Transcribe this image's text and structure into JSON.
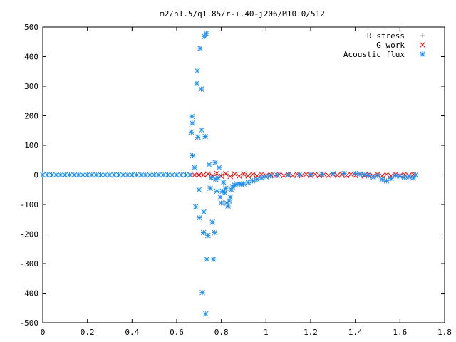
{
  "chart_data": {
    "type": "scatter",
    "title": "m2/n1.5/q1.85/r-+.40-j206/M10.0/512",
    "xlabel": "",
    "ylabel": "",
    "xlim": [
      0,
      1.8
    ],
    "ylim": [
      -500,
      500
    ],
    "x_ticks": [
      0,
      0.2,
      0.4,
      0.6,
      0.8,
      1,
      1.2,
      1.4,
      1.6,
      1.8
    ],
    "x_tick_labels": [
      "0",
      "0.2",
      "0.4",
      "0.6",
      "0.8",
      "1",
      "1.2",
      "1.4",
      "1.6",
      "1.8"
    ],
    "y_ticks": [
      -500,
      -400,
      -300,
      -200,
      -100,
      0,
      100,
      200,
      300,
      400,
      500
    ],
    "y_tick_labels": [
      "-500",
      "-400",
      "-300",
      "-200",
      "-100",
      "0",
      "100",
      "200",
      "300",
      "400",
      "500"
    ],
    "grid": false,
    "legend_position": "top-right",
    "series": [
      {
        "name": "R stress",
        "marker": "plus",
        "color": "#a0a0a0",
        "points": [
          [
            0.7,
            2
          ],
          [
            0.75,
            1
          ],
          [
            0.8,
            -1
          ],
          [
            0.85,
            0
          ],
          [
            0.9,
            1
          ],
          [
            0.95,
            0
          ],
          [
            1.0,
            1
          ],
          [
            1.1,
            2
          ],
          [
            1.2,
            3
          ],
          [
            1.3,
            4
          ],
          [
            1.4,
            3
          ],
          [
            1.5,
            2
          ],
          [
            1.6,
            1
          ],
          [
            1.67,
            0
          ]
        ]
      },
      {
        "name": "G work",
        "marker": "cross",
        "color": "#ff0000",
        "points": [
          [
            0.66,
            0
          ],
          [
            0.68,
            0
          ],
          [
            0.7,
            0
          ],
          [
            0.72,
            0
          ],
          [
            0.74,
            3
          ],
          [
            0.76,
            -3
          ],
          [
            0.78,
            5
          ],
          [
            0.8,
            -4
          ],
          [
            0.82,
            4
          ],
          [
            0.84,
            -5
          ],
          [
            0.86,
            3
          ],
          [
            0.88,
            -4
          ],
          [
            0.9,
            3
          ],
          [
            0.92,
            -3
          ],
          [
            0.94,
            2
          ],
          [
            0.96,
            -3
          ],
          [
            0.98,
            2
          ],
          [
            1.0,
            -2
          ],
          [
            1.02,
            2
          ],
          [
            1.04,
            -2
          ],
          [
            1.06,
            2
          ],
          [
            1.08,
            -2
          ],
          [
            1.1,
            2
          ],
          [
            1.12,
            -2
          ],
          [
            1.14,
            2
          ],
          [
            1.16,
            -2
          ],
          [
            1.18,
            2
          ],
          [
            1.2,
            -2
          ],
          [
            1.22,
            2
          ],
          [
            1.24,
            -2
          ],
          [
            1.26,
            2
          ],
          [
            1.28,
            -2
          ],
          [
            1.3,
            2
          ],
          [
            1.32,
            -1
          ],
          [
            1.34,
            2
          ],
          [
            1.36,
            -2
          ],
          [
            1.38,
            2
          ],
          [
            1.4,
            -2
          ],
          [
            1.42,
            2
          ],
          [
            1.44,
            -3
          ],
          [
            1.46,
            2
          ],
          [
            1.48,
            -3
          ],
          [
            1.5,
            2
          ],
          [
            1.52,
            -3
          ],
          [
            1.54,
            2
          ],
          [
            1.56,
            -3
          ],
          [
            1.58,
            2
          ],
          [
            1.6,
            -2
          ],
          [
            1.62,
            2
          ],
          [
            1.64,
            -2
          ],
          [
            1.66,
            2
          ]
        ]
      },
      {
        "name": "Acoustic flux",
        "marker": "star",
        "color": "#1f8ff0",
        "points": [
          [
            0.0,
            0
          ],
          [
            0.02,
            0
          ],
          [
            0.04,
            0
          ],
          [
            0.06,
            0
          ],
          [
            0.08,
            0
          ],
          [
            0.1,
            0
          ],
          [
            0.12,
            0
          ],
          [
            0.14,
            0
          ],
          [
            0.16,
            0
          ],
          [
            0.18,
            0
          ],
          [
            0.2,
            0
          ],
          [
            0.22,
            0
          ],
          [
            0.24,
            0
          ],
          [
            0.26,
            0
          ],
          [
            0.28,
            0
          ],
          [
            0.3,
            0
          ],
          [
            0.32,
            0
          ],
          [
            0.34,
            0
          ],
          [
            0.36,
            0
          ],
          [
            0.38,
            0
          ],
          [
            0.4,
            0
          ],
          [
            0.42,
            0
          ],
          [
            0.44,
            0
          ],
          [
            0.46,
            0
          ],
          [
            0.48,
            0
          ],
          [
            0.5,
            0
          ],
          [
            0.52,
            0
          ],
          [
            0.54,
            0
          ],
          [
            0.56,
            0
          ],
          [
            0.58,
            0
          ],
          [
            0.6,
            0
          ],
          [
            0.62,
            0
          ],
          [
            0.64,
            0
          ],
          [
            0.66,
            0
          ],
          [
            0.665,
            145
          ],
          [
            0.668,
            198
          ],
          [
            0.67,
            175
          ],
          [
            0.672,
            65
          ],
          [
            0.68,
            25
          ],
          [
            0.685,
            -108
          ],
          [
            0.69,
            310
          ],
          [
            0.692,
            352
          ],
          [
            0.695,
            128
          ],
          [
            0.7,
            -50
          ],
          [
            0.702,
            -145
          ],
          [
            0.705,
            428
          ],
          [
            0.71,
            290
          ],
          [
            0.712,
            152
          ],
          [
            0.715,
            -398
          ],
          [
            0.72,
            -195
          ],
          [
            0.722,
            -125
          ],
          [
            0.725,
            468
          ],
          [
            0.728,
            130
          ],
          [
            0.73,
            -470
          ],
          [
            0.732,
            478
          ],
          [
            0.735,
            -285
          ],
          [
            0.74,
            -205
          ],
          [
            0.745,
            35
          ],
          [
            0.75,
            -45
          ],
          [
            0.755,
            -10
          ],
          [
            0.76,
            -160
          ],
          [
            0.765,
            -285
          ],
          [
            0.77,
            -195
          ],
          [
            0.772,
            42
          ],
          [
            0.775,
            -15
          ],
          [
            0.78,
            -55
          ],
          [
            0.785,
            -10
          ],
          [
            0.79,
            25
          ],
          [
            0.795,
            -75
          ],
          [
            0.8,
            -95
          ],
          [
            0.805,
            -55
          ],
          [
            0.81,
            -25
          ],
          [
            0.815,
            -60
          ],
          [
            0.82,
            -45
          ],
          [
            0.825,
            -95
          ],
          [
            0.83,
            -105
          ],
          [
            0.835,
            -88
          ],
          [
            0.84,
            -75
          ],
          [
            0.845,
            -50
          ],
          [
            0.85,
            -40
          ],
          [
            0.86,
            -35
          ],
          [
            0.87,
            -30
          ],
          [
            0.88,
            -30
          ],
          [
            0.89,
            -32
          ],
          [
            0.9,
            -30
          ],
          [
            0.92,
            -25
          ],
          [
            0.94,
            -20
          ],
          [
            0.96,
            -15
          ],
          [
            0.98,
            -10
          ],
          [
            1.0,
            -6
          ],
          [
            1.02,
            -3
          ],
          [
            1.05,
            -1
          ],
          [
            1.1,
            0
          ],
          [
            1.15,
            1
          ],
          [
            1.2,
            2
          ],
          [
            1.25,
            3
          ],
          [
            1.3,
            4
          ],
          [
            1.35,
            5
          ],
          [
            1.4,
            5
          ],
          [
            1.42,
            3
          ],
          [
            1.44,
            1
          ],
          [
            1.46,
            -2
          ],
          [
            1.48,
            -8
          ],
          [
            1.5,
            -3
          ],
          [
            1.52,
            -15
          ],
          [
            1.54,
            -20
          ],
          [
            1.56,
            -12
          ],
          [
            1.58,
            -3
          ],
          [
            1.6,
            -5
          ],
          [
            1.62,
            -8
          ],
          [
            1.64,
            -6
          ],
          [
            1.66,
            -10
          ],
          [
            1.67,
            0
          ]
        ]
      }
    ]
  }
}
